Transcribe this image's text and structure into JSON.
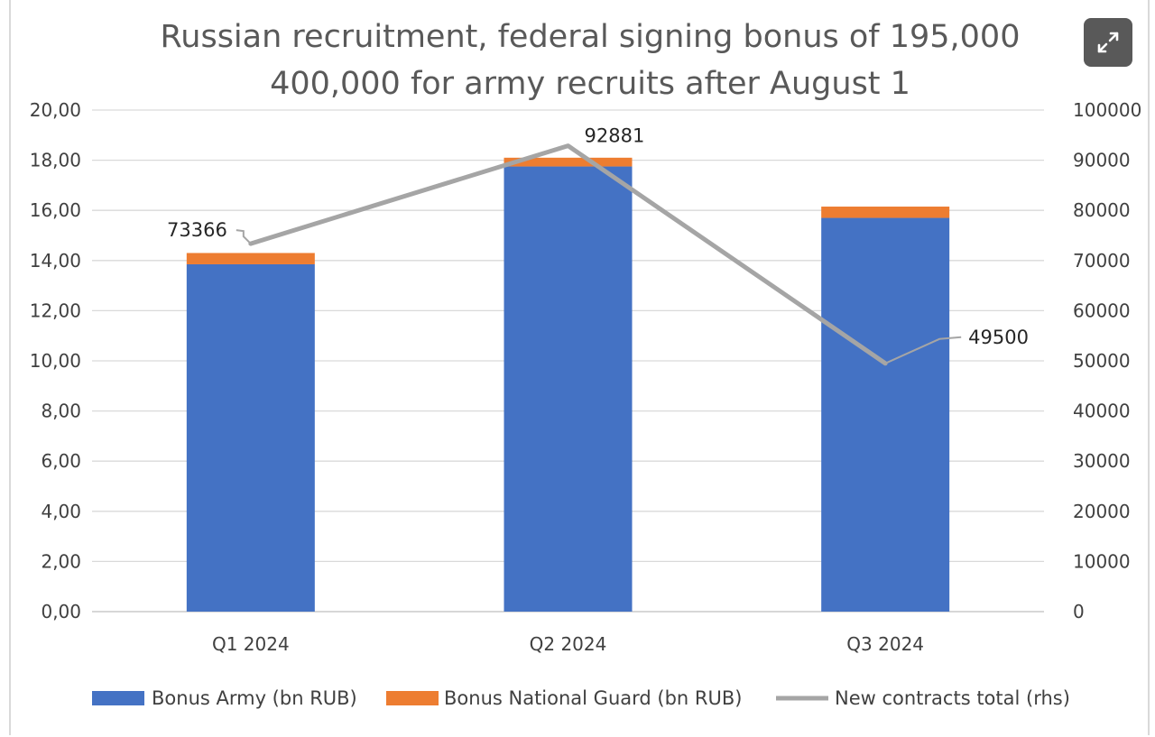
{
  "chart_data": {
    "type": "bar",
    "title_lines": [
      "Russian recruitment, federal signing bonus of 195,000",
      "400,000 for army recruits after August 1"
    ],
    "categories": [
      "Q1 2024",
      "Q2 2024",
      "Q3 2024"
    ],
    "stacked": true,
    "series": [
      {
        "name": "Bonus Army (bn RUB)",
        "type": "bar",
        "axis": "left",
        "color": "#4472c4",
        "values": [
          13.85,
          17.75,
          15.7
        ]
      },
      {
        "name": "Bonus National Guard (bn RUB)",
        "type": "bar",
        "axis": "left",
        "color": "#ed7d31",
        "values": [
          0.45,
          0.35,
          0.45
        ]
      },
      {
        "name": "New contracts total (rhs)",
        "type": "line",
        "axis": "right",
        "color": "#a5a5a5",
        "values": [
          73366,
          92881,
          49500
        ],
        "data_labels": [
          "73366",
          "92881",
          "49500"
        ]
      }
    ],
    "left_axis": {
      "ylim": [
        0,
        20
      ],
      "ticks": [
        0,
        2,
        4,
        6,
        8,
        10,
        12,
        14,
        16,
        18,
        20
      ],
      "tick_labels": [
        "0,00",
        "2,00",
        "4,00",
        "6,00",
        "8,00",
        "10,00",
        "12,00",
        "14,00",
        "16,00",
        "18,00",
        "20,00"
      ]
    },
    "right_axis": {
      "ylim": [
        0,
        100000
      ],
      "ticks": [
        0,
        10000,
        20000,
        30000,
        40000,
        50000,
        60000,
        70000,
        80000,
        90000,
        100000
      ],
      "tick_labels": [
        "0",
        "10000",
        "20000",
        "30000",
        "40000",
        "50000",
        "60000",
        "70000",
        "80000",
        "90000",
        "100000"
      ]
    },
    "grid": true,
    "legend_position": "bottom"
  },
  "ui": {
    "expand_icon": "expand-arrows-icon"
  }
}
